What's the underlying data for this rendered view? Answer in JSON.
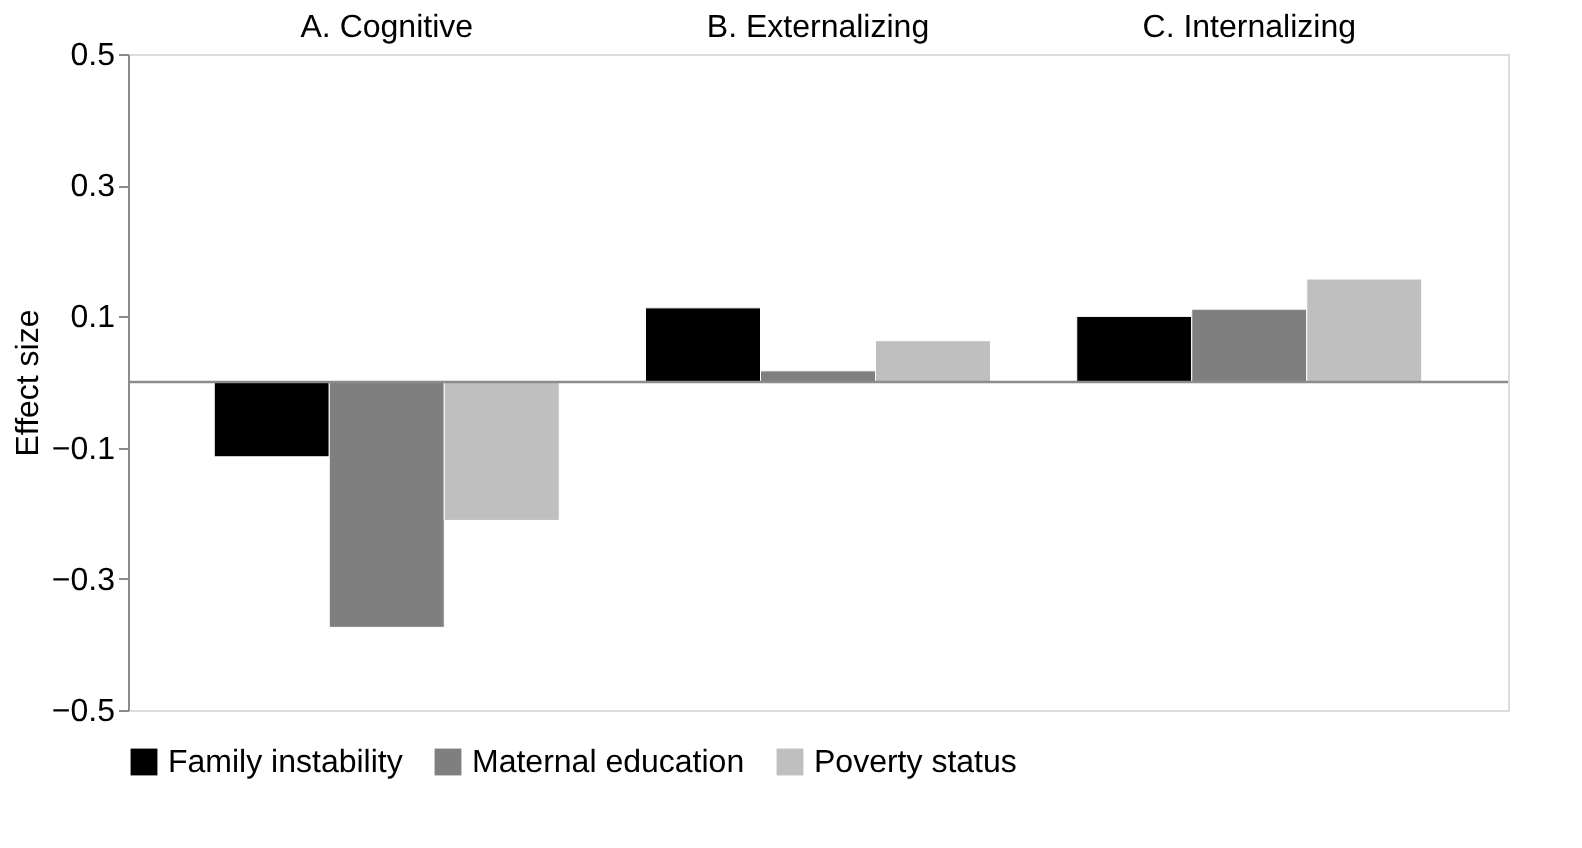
{
  "chart_data": {
    "type": "bar",
    "ylabel": "Effect size",
    "categories": [
      "A. Cognitive",
      "B. Externalizing",
      "C. Internalizing"
    ],
    "series": [
      {
        "name": "Family instability",
        "color": "#000000",
        "values": [
          -0.114,
          0.113,
          0.1
        ]
      },
      {
        "name": "Maternal education",
        "color": "#7f7f7f",
        "values": [
          -0.374,
          0.017,
          0.111
        ]
      },
      {
        "name": "Poverty status",
        "color": "#bfbfbf",
        "values": [
          -0.211,
          0.063,
          0.157
        ]
      }
    ],
    "ylim": [
      -0.5,
      0.5
    ],
    "yticks": [
      -0.5,
      -0.3,
      -0.1,
      0.1,
      0.3,
      0.5
    ],
    "grid": false,
    "legend": "bottom"
  }
}
